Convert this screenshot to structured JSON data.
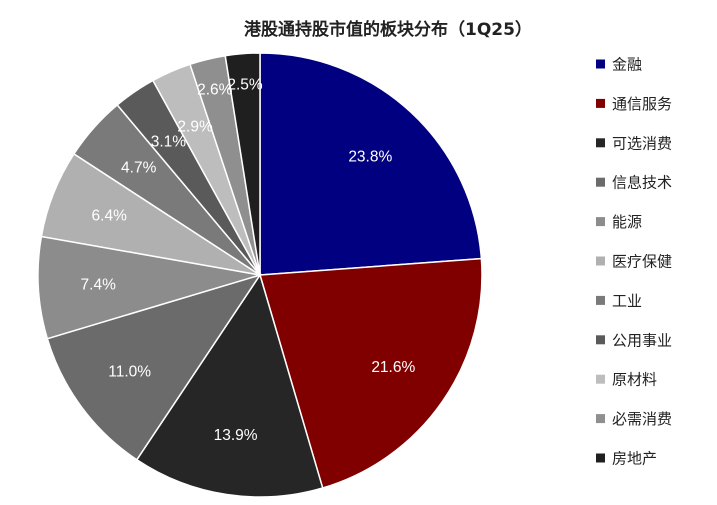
{
  "chart_data": {
    "type": "pie",
    "title": "港股通持股市值的板块分布（1Q25）",
    "start_angle_deg": 0,
    "direction": "clockwise",
    "legend_position": "right",
    "slices": [
      {
        "label": "金融",
        "value": 23.8,
        "display": "23.8%",
        "color": "#000080"
      },
      {
        "label": "通信服务",
        "value": 21.6,
        "display": "21.6%",
        "color": "#800000"
      },
      {
        "label": "可选消费",
        "value": 13.9,
        "display": "13.9%",
        "color": "#262626"
      },
      {
        "label": "信息技术",
        "value": 11.0,
        "display": "11.0%",
        "color": "#6b6b6b"
      },
      {
        "label": "能源",
        "value": 7.4,
        "display": "7.4%",
        "color": "#8c8c8c"
      },
      {
        "label": "医疗保健",
        "value": 6.4,
        "display": "6.4%",
        "color": "#b0b0b0"
      },
      {
        "label": "工业",
        "value": 4.7,
        "display": "4.7%",
        "color": "#7a7a7a"
      },
      {
        "label": "公用事业",
        "value": 3.1,
        "display": "3.1%",
        "color": "#5a5a5a"
      },
      {
        "label": "原材料",
        "value": 2.9,
        "display": "2.9%",
        "color": "#bdbdbd"
      },
      {
        "label": "必需消费",
        "value": 2.6,
        "display": "2.6%",
        "color": "#8f8f8f"
      },
      {
        "label": "房地产",
        "value": 2.5,
        "display": "2.5%",
        "color": "#1f1f1f"
      }
    ]
  }
}
